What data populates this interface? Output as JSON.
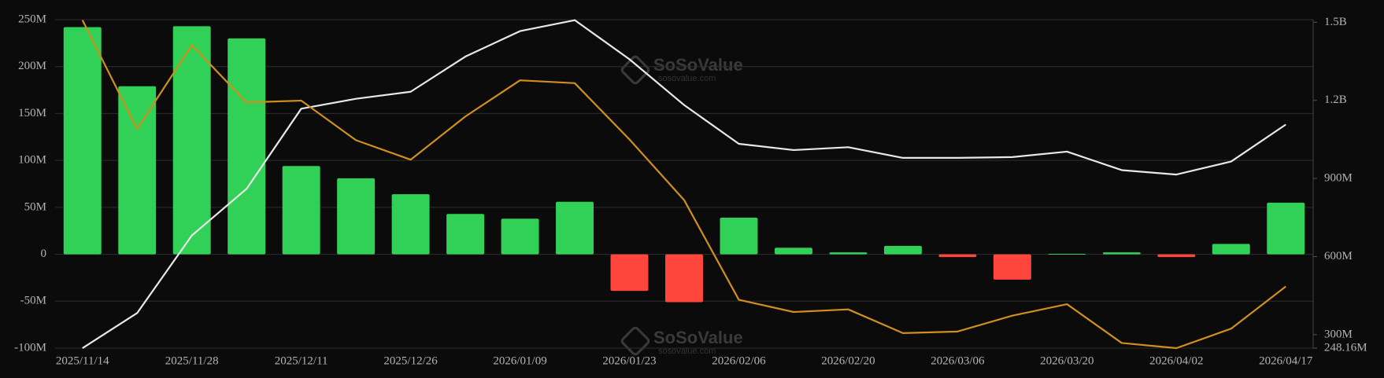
{
  "chart_data": {
    "type": "bar_line",
    "watermark": {
      "brand": "SoSoValue",
      "site": "sosovalue.com"
    },
    "categories": [
      "2025/11/14",
      null,
      "2025/11/28",
      null,
      "2025/12/11",
      null,
      "2025/12/26",
      null,
      "2026/01/09",
      null,
      "2026/01/23",
      null,
      "2026/02/06",
      null,
      "2026/02/20",
      null,
      "2026/03/06",
      null,
      "2026/03/20",
      null,
      "2026/04/02",
      null,
      "2026/04/17"
    ],
    "series": [
      {
        "type": "bar",
        "color": "#31d158",
        "negative_color": "#ff463c",
        "axis": "y",
        "values": [
          242000000,
          179000000,
          243000000,
          230000000,
          94000000,
          81000000,
          64000000,
          43000000,
          38000000,
          56000000,
          -39000000,
          -51000000,
          39000000,
          7000000,
          2000000,
          9000000,
          -3000000,
          -27000000,
          500000,
          2000000,
          -3000000,
          11000000,
          55000000
        ]
      },
      {
        "type": "line",
        "color": "#e8e8e8",
        "axis": "y2",
        "values": [
          248000000,
          383000000,
          681000000,
          860000000,
          1168000000,
          1206000000,
          1233000000,
          1368000000,
          1466000000,
          1508000000,
          1358000000,
          1182000000,
          1033000000,
          1009000000,
          1020000000,
          979000000,
          979000000,
          982000000,
          1003000000,
          932000000,
          915000000,
          965000000,
          1107000000
        ]
      },
      {
        "type": "line",
        "color": "#d08f1c",
        "axis": "y2",
        "values": [
          1508000000,
          1090000000,
          1412000000,
          1192000000,
          1199000000,
          1047000000,
          972000000,
          1138000000,
          1277000000,
          1266000000,
          1050000000,
          817000000,
          434000000,
          387000000,
          397000000,
          306000000,
          312000000,
          373000000,
          417000000,
          268000000,
          248160000,
          323000000,
          485000000
        ]
      }
    ],
    "ylim": [
      -100000000,
      250000000
    ],
    "yticks": [
      {
        "value": 250000000,
        "label": "250M"
      },
      {
        "value": 200000000,
        "label": "200M"
      },
      {
        "value": 150000000,
        "label": "150M"
      },
      {
        "value": 100000000,
        "label": "100M"
      },
      {
        "value": 50000000,
        "label": "50M"
      },
      0,
      {
        "value": -50000000,
        "label": "-50M"
      },
      {
        "value": -100000000,
        "label": "-100M"
      }
    ],
    "y2lim": [
      248160000,
      1510000000
    ],
    "y2ticks": [
      {
        "value": 1500000000,
        "label": "1.5B"
      },
      {
        "value": 1200000000,
        "label": "1.2B"
      },
      {
        "value": 900000000,
        "label": "900M"
      },
      {
        "value": 600000000,
        "label": "600M"
      },
      {
        "value": 300000000,
        "label": "300M"
      },
      {
        "value": 248160000,
        "label": "248.16M"
      }
    ],
    "grid": true
  }
}
